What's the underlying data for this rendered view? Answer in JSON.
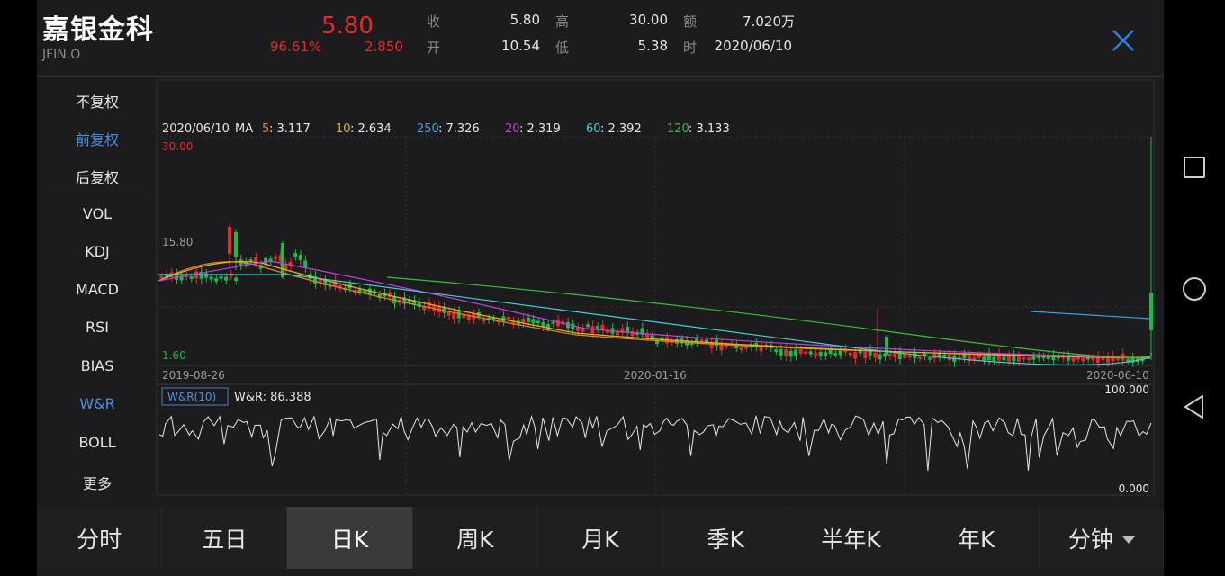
{
  "header": {
    "name": "嘉银金科",
    "code": "JFIN.O",
    "price": "5.80",
    "change_pct": "96.61%",
    "change_amt": "2.850",
    "stats": [
      {
        "k": "收",
        "v": "5.80"
      },
      {
        "k": "开",
        "v": "10.54"
      },
      {
        "k": "高",
        "v": "30.00"
      },
      {
        "k": "低",
        "v": "5.38"
      },
      {
        "k": "额",
        "v": "7.020万"
      },
      {
        "k": "时",
        "v": "2020/06/10"
      }
    ],
    "close_icon": "close-icon"
  },
  "menu": {
    "items": [
      "不复权",
      "前复权",
      "后复权",
      "VOL",
      "KDJ",
      "MACD",
      "RSI",
      "BIAS",
      "W&R",
      "BOLL",
      "更多"
    ],
    "active": [
      "前复权",
      "W&R"
    ]
  },
  "chart_data": [
    {
      "type": "candlestick",
      "legend": {
        "date": "2020/06/10",
        "ma_label": "MA",
        "items": [
          {
            "key": "5",
            "sep": " : ",
            "val": "3.117",
            "color": "#e8802b"
          },
          {
            "key": "10",
            "sep": " : ",
            "val": "2.634",
            "color": "#e6b422"
          },
          {
            "key": "250",
            "sep": " : ",
            "val": "7.326",
            "color": "#3aa0e8"
          },
          {
            "key": "20",
            "sep": " : ",
            "val": "2.319",
            "color": "#c040e0"
          },
          {
            "key": "60",
            "sep": " : ",
            "val": "2.392",
            "color": "#40d0d0"
          },
          {
            "key": "120",
            "sep": " : ",
            "val": "3.133",
            "color": "#38c038"
          }
        ]
      },
      "y_labels": {
        "top": "30.00",
        "mid": "15.80",
        "bottom": "1.60"
      },
      "x_labels": [
        "2019-08-26",
        "2020-01-16",
        "2020-06-10"
      ],
      "ylim": [
        1.6,
        30.0
      ]
    },
    {
      "type": "line",
      "indicator": {
        "name": "W&R",
        "param": "10",
        "value_label": "W&R",
        "value": "86.388"
      },
      "y_labels": {
        "top": "100.000",
        "bottom": "0.000"
      },
      "ylim": [
        0,
        100
      ]
    }
  ],
  "tabs": [
    "分时",
    "五日",
    "日K",
    "周K",
    "月K",
    "季K",
    "半年K",
    "年K",
    "分钟"
  ],
  "active_tab": "日K",
  "colors": {
    "up": "#e8282b",
    "down": "#1fb94a",
    "accent": "#4a90e2"
  }
}
